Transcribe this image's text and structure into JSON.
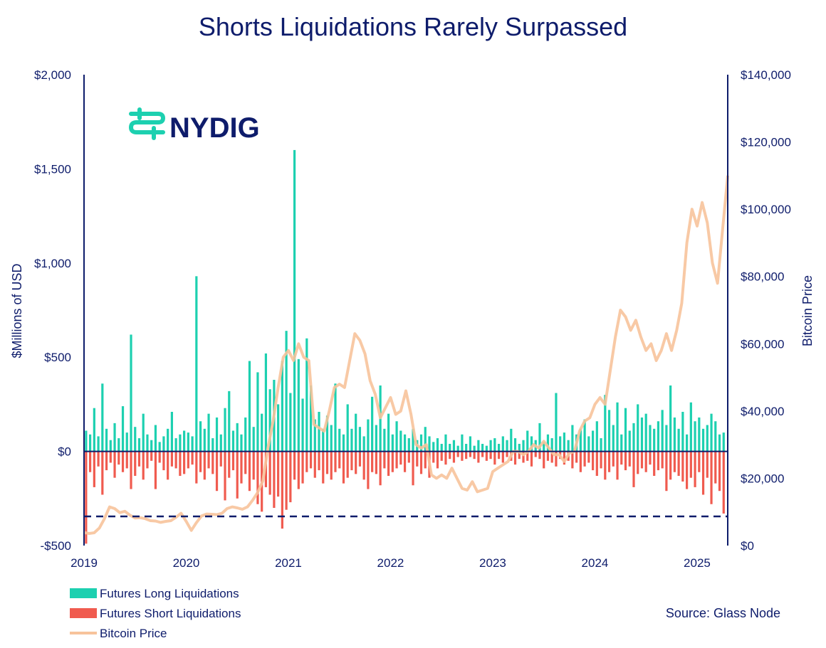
{
  "brand": {
    "name": "NYDIG"
  },
  "colors": {
    "navy": "#0e1c6b",
    "teal": "#1dd0b0",
    "red": "#f05b4f",
    "peach": "#f7c39b"
  },
  "chart_data": {
    "type": "bar",
    "title": "Shorts Liquidations Rarely Surpassed",
    "ylabel": "$Millions of USD",
    "y2label": "Bitcoin Price",
    "ylim": [
      -500,
      2000
    ],
    "y2lim": [
      0,
      140000
    ],
    "yticks": [
      {
        "value": -500,
        "label": "-$500"
      },
      {
        "value": 0,
        "label": "$0"
      },
      {
        "value": 500,
        "label": "$500"
      },
      {
        "value": 1000,
        "label": "$1,000"
      },
      {
        "value": 1500,
        "label": "$1,500"
      },
      {
        "value": 2000,
        "label": "$2,000"
      }
    ],
    "y2ticks": [
      {
        "value": 0,
        "label": "$0"
      },
      {
        "value": 20000,
        "label": "$20,000"
      },
      {
        "value": 40000,
        "label": "$40,000"
      },
      {
        "value": 60000,
        "label": "$60,000"
      },
      {
        "value": 80000,
        "label": "$80,000"
      },
      {
        "value": 100000,
        "label": "$100,000"
      },
      {
        "value": 120000,
        "label": "$120,000"
      },
      {
        "value": 140000,
        "label": "$140,000"
      }
    ],
    "xlim": [
      2019.0,
      2025.3
    ],
    "xticks": [
      {
        "value": 2019,
        "label": "2019"
      },
      {
        "value": 2020,
        "label": "2020"
      },
      {
        "value": 2021,
        "label": "2021"
      },
      {
        "value": 2022,
        "label": "2022"
      },
      {
        "value": 2023,
        "label": "2023"
      },
      {
        "value": 2024,
        "label": "2024"
      },
      {
        "value": 2025,
        "label": "2025"
      }
    ],
    "reference_line": {
      "value": -345,
      "style": "dashed"
    },
    "legend": [
      {
        "key": "long",
        "label": "Futures Long Liquidations",
        "kind": "bar"
      },
      {
        "key": "short",
        "label": "Futures Short Liquidations",
        "kind": "bar"
      },
      {
        "key": "price",
        "label": "Bitcoin Price",
        "kind": "line"
      }
    ],
    "annotation": "Source: Glass Node",
    "series": [
      {
        "name": "Futures Long Liquidations",
        "key": "long",
        "axis": "left",
        "x": [
          2019.02,
          2019.06,
          2019.1,
          2019.14,
          2019.18,
          2019.22,
          2019.26,
          2019.3,
          2019.34,
          2019.38,
          2019.42,
          2019.46,
          2019.5,
          2019.54,
          2019.58,
          2019.62,
          2019.66,
          2019.7,
          2019.74,
          2019.78,
          2019.82,
          2019.86,
          2019.9,
          2019.94,
          2019.98,
          2020.02,
          2020.06,
          2020.1,
          2020.14,
          2020.18,
          2020.22,
          2020.26,
          2020.3,
          2020.34,
          2020.38,
          2020.42,
          2020.46,
          2020.5,
          2020.54,
          2020.58,
          2020.62,
          2020.66,
          2020.7,
          2020.74,
          2020.78,
          2020.82,
          2020.86,
          2020.9,
          2020.94,
          2020.98,
          2021.02,
          2021.06,
          2021.1,
          2021.14,
          2021.18,
          2021.22,
          2021.26,
          2021.3,
          2021.34,
          2021.38,
          2021.42,
          2021.46,
          2021.5,
          2021.54,
          2021.58,
          2021.62,
          2021.66,
          2021.7,
          2021.74,
          2021.78,
          2021.82,
          2021.86,
          2021.9,
          2021.94,
          2021.98,
          2022.02,
          2022.06,
          2022.1,
          2022.14,
          2022.18,
          2022.22,
          2022.26,
          2022.3,
          2022.34,
          2022.38,
          2022.42,
          2022.46,
          2022.5,
          2022.54,
          2022.58,
          2022.62,
          2022.66,
          2022.7,
          2022.74,
          2022.78,
          2022.82,
          2022.86,
          2022.9,
          2022.94,
          2022.98,
          2023.02,
          2023.06,
          2023.1,
          2023.14,
          2023.18,
          2023.22,
          2023.26,
          2023.3,
          2023.34,
          2023.38,
          2023.42,
          2023.46,
          2023.5,
          2023.54,
          2023.58,
          2023.62,
          2023.66,
          2023.7,
          2023.74,
          2023.78,
          2023.82,
          2023.86,
          2023.9,
          2023.94,
          2023.98,
          2024.02,
          2024.06,
          2024.1,
          2024.14,
          2024.18,
          2024.22,
          2024.26,
          2024.3,
          2024.34,
          2024.38,
          2024.42,
          2024.46,
          2024.5,
          2024.54,
          2024.58,
          2024.62,
          2024.66,
          2024.7,
          2024.74,
          2024.78,
          2024.82,
          2024.86,
          2024.9,
          2024.94,
          2024.98,
          2025.02,
          2025.06,
          2025.1,
          2025.14,
          2025.18,
          2025.22,
          2025.26
        ],
        "values": [
          110,
          90,
          230,
          80,
          360,
          120,
          60,
          150,
          70,
          240,
          100,
          620,
          130,
          70,
          200,
          90,
          60,
          140,
          50,
          80,
          120,
          210,
          70,
          90,
          110,
          100,
          80,
          930,
          160,
          120,
          200,
          70,
          180,
          90,
          230,
          320,
          110,
          150,
          90,
          180,
          480,
          130,
          420,
          200,
          520,
          330,
          380,
          250,
          480,
          640,
          310,
          1600,
          490,
          280,
          600,
          350,
          170,
          210,
          120,
          190,
          140,
          360,
          120,
          90,
          250,
          120,
          200,
          130,
          80,
          170,
          290,
          140,
          350,
          120,
          200,
          90,
          160,
          110,
          90,
          70,
          120,
          60,
          90,
          130,
          80,
          50,
          70,
          40,
          90,
          40,
          60,
          30,
          90,
          40,
          80,
          30,
          60,
          40,
          30,
          60,
          70,
          40,
          80,
          60,
          120,
          70,
          40,
          60,
          110,
          80,
          60,
          150,
          50,
          90,
          70,
          310,
          80,
          100,
          60,
          140,
          90,
          120,
          170,
          80,
          110,
          160,
          70,
          300,
          220,
          140,
          260,
          90,
          230,
          110,
          150,
          250,
          180,
          200,
          140,
          120,
          160,
          220,
          140,
          350,
          180,
          120,
          210,
          90,
          260,
          160,
          180,
          120,
          140,
          200,
          160,
          90,
          100
        ],
        "color": "#1dd0b0"
      },
      {
        "name": "Futures Short Liquidations",
        "key": "short",
        "axis": "left",
        "x": [
          2019.02,
          2019.06,
          2019.1,
          2019.14,
          2019.18,
          2019.22,
          2019.26,
          2019.3,
          2019.34,
          2019.38,
          2019.42,
          2019.46,
          2019.5,
          2019.54,
          2019.58,
          2019.62,
          2019.66,
          2019.7,
          2019.74,
          2019.78,
          2019.82,
          2019.86,
          2019.9,
          2019.94,
          2019.98,
          2020.02,
          2020.06,
          2020.1,
          2020.14,
          2020.18,
          2020.22,
          2020.26,
          2020.3,
          2020.34,
          2020.38,
          2020.42,
          2020.46,
          2020.5,
          2020.54,
          2020.58,
          2020.62,
          2020.66,
          2020.7,
          2020.74,
          2020.78,
          2020.82,
          2020.86,
          2020.9,
          2020.94,
          2020.98,
          2021.02,
          2021.06,
          2021.1,
          2021.14,
          2021.18,
          2021.22,
          2021.26,
          2021.3,
          2021.34,
          2021.38,
          2021.42,
          2021.46,
          2021.5,
          2021.54,
          2021.58,
          2021.62,
          2021.66,
          2021.7,
          2021.74,
          2021.78,
          2021.82,
          2021.86,
          2021.9,
          2021.94,
          2021.98,
          2022.02,
          2022.06,
          2022.1,
          2022.14,
          2022.18,
          2022.22,
          2022.26,
          2022.3,
          2022.34,
          2022.38,
          2022.42,
          2022.46,
          2022.5,
          2022.54,
          2022.58,
          2022.62,
          2022.66,
          2022.7,
          2022.74,
          2022.78,
          2022.82,
          2022.86,
          2022.9,
          2022.94,
          2022.98,
          2023.02,
          2023.06,
          2023.1,
          2023.14,
          2023.18,
          2023.22,
          2023.26,
          2023.3,
          2023.34,
          2023.38,
          2023.42,
          2023.46,
          2023.5,
          2023.54,
          2023.58,
          2023.62,
          2023.66,
          2023.7,
          2023.74,
          2023.78,
          2023.82,
          2023.86,
          2023.9,
          2023.94,
          2023.98,
          2024.02,
          2024.06,
          2024.1,
          2024.14,
          2024.18,
          2024.22,
          2024.26,
          2024.3,
          2024.34,
          2024.38,
          2024.42,
          2024.46,
          2024.5,
          2024.54,
          2024.58,
          2024.62,
          2024.66,
          2024.7,
          2024.74,
          2024.78,
          2024.82,
          2024.86,
          2024.9,
          2024.94,
          2024.98,
          2025.02,
          2025.06,
          2025.1,
          2025.14,
          2025.18,
          2025.22,
          2025.26
        ],
        "values": [
          -490,
          -110,
          -190,
          -80,
          -230,
          -100,
          -60,
          -140,
          -70,
          -110,
          -90,
          -200,
          -130,
          -80,
          -150,
          -90,
          -50,
          -200,
          -60,
          -100,
          -150,
          -80,
          -90,
          -130,
          -120,
          -90,
          -70,
          -170,
          -110,
          -150,
          -90,
          -120,
          -210,
          -80,
          -260,
          -140,
          -100,
          -250,
          -170,
          -120,
          -210,
          -150,
          -280,
          -320,
          -190,
          -230,
          -300,
          -240,
          -410,
          -310,
          -270,
          -150,
          -200,
          -170,
          -110,
          -90,
          -140,
          -100,
          -170,
          -120,
          -150,
          -110,
          -90,
          -170,
          -140,
          -100,
          -120,
          -80,
          -150,
          -200,
          -110,
          -120,
          -180,
          -90,
          -130,
          -110,
          -90,
          -70,
          -110,
          -60,
          -180,
          -80,
          -120,
          -90,
          -140,
          -60,
          -90,
          -50,
          -70,
          -40,
          -60,
          -30,
          -50,
          -40,
          -30,
          -40,
          -60,
          -30,
          -50,
          -40,
          -70,
          -40,
          -60,
          -30,
          -50,
          -70,
          -40,
          -60,
          -50,
          -80,
          -30,
          -40,
          -90,
          -50,
          -60,
          -80,
          -40,
          -70,
          -50,
          -90,
          -60,
          -110,
          -80,
          -60,
          -100,
          -130,
          -90,
          -150,
          -110,
          -80,
          -150,
          -70,
          -100,
          -80,
          -190,
          -120,
          -90,
          -110,
          -70,
          -130,
          -100,
          -90,
          -210,
          -150,
          -110,
          -130,
          -160,
          -200,
          -140,
          -190,
          -110,
          -230,
          -140,
          -280,
          -170,
          -210,
          -330
        ],
        "color": "#f05b4f"
      },
      {
        "name": "Bitcoin Price",
        "key": "price",
        "axis": "right",
        "x": [
          2019.0,
          2019.05,
          2019.1,
          2019.15,
          2019.2,
          2019.25,
          2019.3,
          2019.35,
          2019.4,
          2019.45,
          2019.5,
          2019.55,
          2019.6,
          2019.65,
          2019.7,
          2019.75,
          2019.8,
          2019.85,
          2019.9,
          2019.95,
          2020.0,
          2020.05,
          2020.1,
          2020.15,
          2020.2,
          2020.25,
          2020.3,
          2020.35,
          2020.4,
          2020.45,
          2020.5,
          2020.55,
          2020.6,
          2020.65,
          2020.7,
          2020.75,
          2020.8,
          2020.85,
          2020.9,
          2020.95,
          2021.0,
          2021.05,
          2021.1,
          2021.15,
          2021.2,
          2021.25,
          2021.3,
          2021.35,
          2021.4,
          2021.45,
          2021.5,
          2021.55,
          2021.6,
          2021.65,
          2021.7,
          2021.75,
          2021.8,
          2021.85,
          2021.9,
          2021.95,
          2022.0,
          2022.05,
          2022.1,
          2022.15,
          2022.2,
          2022.25,
          2022.3,
          2022.35,
          2022.4,
          2022.45,
          2022.5,
          2022.55,
          2022.6,
          2022.65,
          2022.7,
          2022.75,
          2022.8,
          2022.85,
          2022.9,
          2022.95,
          2023.0,
          2023.05,
          2023.1,
          2023.15,
          2023.2,
          2023.25,
          2023.3,
          2023.35,
          2023.4,
          2023.45,
          2023.5,
          2023.55,
          2023.6,
          2023.65,
          2023.7,
          2023.75,
          2023.8,
          2023.85,
          2023.9,
          2023.95,
          2024.0,
          2024.05,
          2024.1,
          2024.15,
          2024.2,
          2024.25,
          2024.3,
          2024.35,
          2024.4,
          2024.45,
          2024.5,
          2024.55,
          2024.6,
          2024.65,
          2024.7,
          2024.75,
          2024.8,
          2024.85,
          2024.9,
          2024.95,
          2025.0,
          2025.05,
          2025.1,
          2025.15,
          2025.2,
          2025.25,
          2025.3
        ],
        "values": [
          3900,
          3600,
          3800,
          5200,
          8000,
          11500,
          11000,
          9800,
          10200,
          9000,
          8200,
          8300,
          8000,
          7400,
          7300,
          6900,
          7200,
          7400,
          8400,
          9600,
          7200,
          4500,
          6800,
          8800,
          9400,
          9300,
          9200,
          9600,
          11000,
          11500,
          11200,
          10800,
          11500,
          13500,
          15800,
          19200,
          29000,
          37000,
          47000,
          56000,
          58000,
          55000,
          60000,
          56000,
          55000,
          36000,
          35000,
          34000,
          40000,
          47000,
          48000,
          47000,
          55000,
          63000,
          61000,
          57000,
          49000,
          45000,
          38000,
          41000,
          44000,
          39000,
          40000,
          46000,
          39000,
          30000,
          29000,
          30000,
          21000,
          20000,
          21000,
          20000,
          23000,
          20000,
          17000,
          16500,
          19000,
          16000,
          16500,
          17000,
          22000,
          23000,
          24000,
          25000,
          28000,
          28000,
          27000,
          28000,
          30000,
          29000,
          31000,
          29000,
          27000,
          27000,
          25000,
          27500,
          28000,
          34000,
          37000,
          38000,
          42000,
          44000,
          42000,
          52000,
          62000,
          70000,
          68000,
          64000,
          67000,
          62000,
          58000,
          60000,
          55000,
          58000,
          63000,
          58000,
          64000,
          72000,
          90000,
          100000,
          95000,
          102000,
          96000,
          84000,
          78000,
          94000,
          110000
        ],
        "color": "#f7c39b"
      }
    ]
  }
}
